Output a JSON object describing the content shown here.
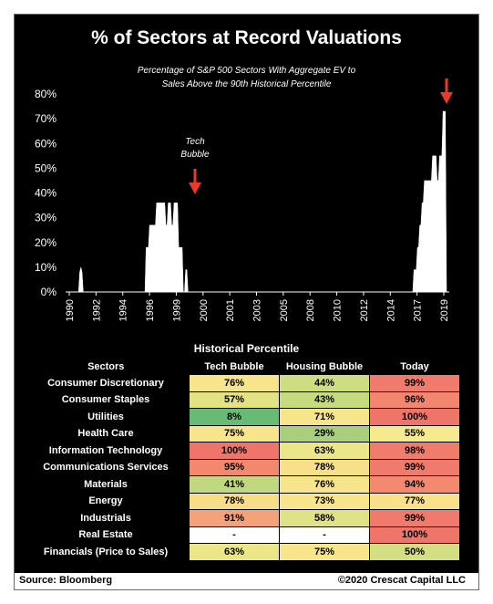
{
  "title": "% of Sectors at Record Valuations",
  "subtitle_line1": "Percentage of S&P 500 Sectors With Aggregate EV to",
  "subtitle_line2": "Sales Above the 90th  Historical Percentile",
  "annotation": {
    "line1": "Tech",
    "line2": "Bubble"
  },
  "chart_data": {
    "type": "area",
    "title": "% of Sectors at Record Valuations",
    "xlabel": "",
    "ylabel": "",
    "y_ticks": [
      "0%",
      "10%",
      "20%",
      "30%",
      "40%",
      "50%",
      "60%",
      "70%",
      "80%"
    ],
    "x_ticks": [
      "1990",
      "1992",
      "1994",
      "1996",
      "1999",
      "2000",
      "2001",
      "2003",
      "2005",
      "2008",
      "2010",
      "2012",
      "2014",
      "2017",
      "2019"
    ],
    "ylim": [
      0,
      80
    ],
    "grid": false,
    "legend": "none",
    "series": [
      {
        "values_percent": [
          0,
          0,
          0,
          0,
          0,
          0,
          0,
          0,
          0,
          8,
          10,
          8,
          0,
          0,
          0,
          0,
          0,
          0,
          0,
          0,
          0,
          0,
          0,
          0,
          0,
          0,
          0,
          0,
          0,
          0,
          0,
          0,
          0,
          0,
          0,
          0,
          0,
          0,
          0,
          0,
          0,
          0,
          0,
          0,
          0,
          0,
          0,
          0,
          0,
          0,
          0,
          0,
          0,
          0,
          0,
          0,
          0,
          0,
          0,
          0,
          0,
          0,
          0,
          0,
          0,
          0,
          18,
          18,
          18,
          27,
          27,
          27,
          27,
          27,
          27,
          36,
          36,
          36,
          36,
          36,
          36,
          36,
          36,
          27,
          27,
          36,
          36,
          36,
          27,
          27,
          36,
          36,
          36,
          36,
          18,
          18,
          18,
          18,
          0,
          0,
          9,
          9,
          0,
          0,
          0,
          0,
          0,
          0,
          0,
          0,
          0,
          0,
          0,
          0,
          0,
          0,
          0,
          0,
          0,
          0,
          0,
          0,
          0,
          0,
          0,
          0,
          0,
          0,
          0,
          0,
          0,
          0,
          0,
          0,
          0,
          0,
          0,
          0,
          0,
          0,
          0,
          0,
          0,
          0,
          0,
          0,
          0,
          0,
          0,
          0,
          0,
          0,
          0,
          0,
          0,
          0,
          0,
          0,
          0,
          0,
          0,
          0,
          0,
          0,
          0,
          0,
          0,
          0,
          0,
          0,
          0,
          0,
          0,
          0,
          0,
          0,
          0,
          0,
          0,
          0,
          0,
          0,
          0,
          0,
          0,
          0,
          0,
          0,
          0,
          0,
          0,
          0,
          0,
          0,
          0,
          0,
          0,
          0,
          0,
          0,
          0,
          0,
          0,
          0,
          0,
          0,
          0,
          0,
          0,
          0,
          0,
          0,
          0,
          0,
          0,
          0,
          0,
          0,
          0,
          0,
          0,
          0,
          0,
          0,
          0,
          0,
          0,
          0,
          0,
          0,
          0,
          0,
          0,
          0,
          0,
          0,
          0,
          0,
          0,
          0,
          0,
          0,
          0,
          0,
          0,
          0,
          0,
          0,
          0,
          0,
          0,
          0,
          0,
          0,
          0,
          0,
          0,
          0,
          0,
          0,
          0,
          0,
          0,
          0,
          0,
          0,
          0,
          0,
          0,
          0,
          0,
          0,
          0,
          0,
          0,
          0,
          0,
          0,
          0,
          0,
          0,
          0,
          0,
          0,
          0,
          0,
          0,
          0,
          0,
          0,
          0,
          0,
          0,
          0,
          0,
          0,
          9,
          9,
          9,
          18,
          18,
          27,
          27,
          36,
          36,
          45,
          45,
          45,
          45,
          45,
          45,
          45,
          55,
          55,
          55,
          55,
          45,
          45,
          55,
          55,
          55,
          73,
          73,
          73,
          0
        ]
      }
    ]
  },
  "table": {
    "title": "Historical Percentile",
    "headers": [
      "Sectors",
      "Tech Bubble",
      "Housing Bubble",
      "Today"
    ],
    "rows": [
      {
        "sector": "Consumer Discretionary",
        "tech": "76%",
        "housing": "44%",
        "today": "99%",
        "c1": "#f6e58b",
        "c2": "#cfdd82",
        "c3": "#f07a6b"
      },
      {
        "sector": "Consumer Staples",
        "tech": "57%",
        "housing": "43%",
        "today": "96%",
        "c1": "#e3e384",
        "c2": "#c6da80",
        "c3": "#f3866f"
      },
      {
        "sector": "Utilities",
        "tech": "8%",
        "housing": "71%",
        "today": "100%",
        "c1": "#68bb76",
        "c2": "#f6e58b",
        "c3": "#ef746a"
      },
      {
        "sector": "Health Care",
        "tech": "75%",
        "housing": "29%",
        "today": "55%",
        "c1": "#f6e58b",
        "c2": "#a9cf7c",
        "c3": "#f5ea8d"
      },
      {
        "sector": "Information Technology",
        "tech": "100%",
        "housing": "63%",
        "today": "98%",
        "c1": "#ef746a",
        "c2": "#ebe688",
        "c3": "#f07d6c"
      },
      {
        "sector": "Communications Services",
        "tech": "95%",
        "housing": "78%",
        "today": "99%",
        "c1": "#f2896f",
        "c2": "#f8df89",
        "c3": "#f07a6b"
      },
      {
        "sector": "Materials",
        "tech": "41%",
        "housing": "76%",
        "today": "94%",
        "c1": "#c0d87f",
        "c2": "#f6e58b",
        "c3": "#f3896f"
      },
      {
        "sector": "Energy",
        "tech": "78%",
        "housing": "73%",
        "today": "77%",
        "c1": "#f8dd89",
        "c2": "#f6e58b",
        "c3": "#f8e18a"
      },
      {
        "sector": "Industrials",
        "tech": "91%",
        "housing": "58%",
        "today": "99%",
        "c1": "#f4a27a",
        "c2": "#e1e285",
        "c3": "#f07a6b"
      },
      {
        "sector": "Real Estate",
        "tech": "-",
        "housing": "-",
        "today": "100%",
        "c1": "#ffffff",
        "c2": "#ffffff",
        "c3": "#ef746a"
      },
      {
        "sector": "Financials (Price to Sales)",
        "tech": "63%",
        "housing": "75%",
        "today": "50%",
        "c1": "#ebe688",
        "c2": "#f6e58b",
        "c3": "#d4de83"
      }
    ]
  },
  "footer": {
    "source": "Source: Bloomberg",
    "copyright": "©2020 Crescat Capital LLC"
  },
  "colors": {
    "background": "#000000",
    "area_fill": "#ffffff",
    "arrow": "#e8392a"
  }
}
